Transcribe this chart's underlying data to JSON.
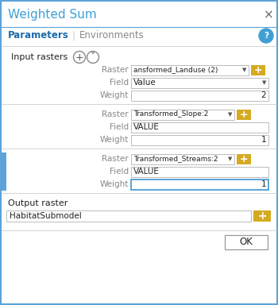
{
  "title": "Weighted Sum",
  "tab_parameters": "Parameters",
  "tab_environments": "Environments",
  "label_input_rasters": "Input rasters",
  "rows": [
    {
      "raster": "ansformed_Landuse (2)",
      "field": "Value",
      "weight": "2",
      "has_field_arrow": true,
      "weight_blue_border": false
    },
    {
      "raster": "Transformed_Slope:2",
      "field": "VALUE",
      "weight": "1",
      "has_field_arrow": false,
      "weight_blue_border": false
    },
    {
      "raster": "Transformed_Streams:2",
      "field": "VALUE",
      "weight": "1",
      "has_field_arrow": false,
      "weight_blue_border": true,
      "has_blue_left_bar": true
    }
  ],
  "label_output_raster": "Output raster",
  "output_value": "HabitatSubmodel",
  "ok_button": "OK",
  "bg_color": "#ffffff",
  "outer_border_color": "#5ba3d9",
  "title_color": "#3fa0d5",
  "title_fontsize": 11,
  "param_tab_color": "#1a6aab",
  "env_tab_color": "#888888",
  "label_color": "#888888",
  "text_color": "#222222",
  "box_border_color": "#bbbbbb",
  "blue_bar_color": "#5ba3d9",
  "gold_btn_color": "#d4aa20",
  "divider_color": "#cccccc",
  "help_icon_color": "#3fa0d5",
  "blue_weight_border": "#4a9fd4",
  "tab_divider_color": "#cccccc",
  "ok_btn_border": "#999999"
}
